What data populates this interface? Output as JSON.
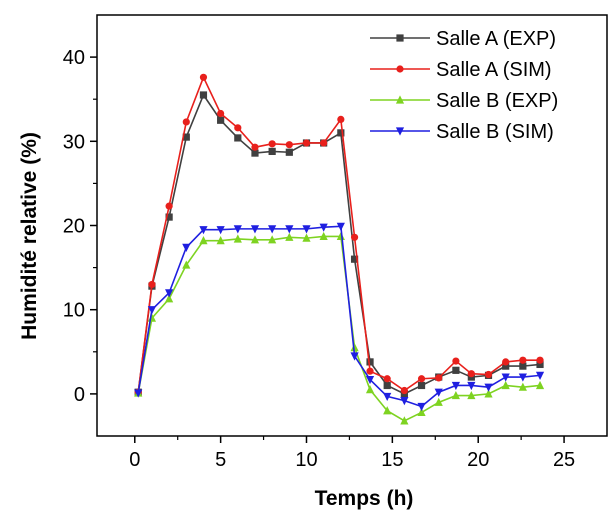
{
  "chart_data": {
    "type": "line",
    "title": "",
    "xlabel": "Temps (h)",
    "ylabel": "Humidité relative  (%)",
    "xlim": [
      -2.2,
      27.5
    ],
    "ylim": [
      -5,
      45
    ],
    "xticks": [
      0,
      5,
      10,
      15,
      20,
      25
    ],
    "yticks": [
      0,
      10,
      20,
      30,
      40
    ],
    "grid": false,
    "legend_position": "top-right",
    "x": [
      0.2,
      1,
      2,
      3,
      4,
      5,
      6,
      7,
      8,
      9,
      10,
      11,
      12,
      12.8,
      13.7,
      14.7,
      15.7,
      16.7,
      17.7,
      18.7,
      19.6,
      20.6,
      21.6,
      22.6,
      23.6
    ],
    "series": [
      {
        "name": "Salle A (EXP)",
        "color": "#404040",
        "marker": "square",
        "values": [
          0.2,
          12.8,
          21.0,
          30.5,
          35.5,
          32.5,
          30.4,
          28.6,
          28.8,
          28.7,
          29.8,
          29.8,
          31.0,
          16.0,
          3.8,
          1.0,
          0.0,
          1.0,
          2.0,
          2.8,
          2.0,
          2.2,
          3.3,
          3.3,
          3.5
        ]
      },
      {
        "name": "Salle A (SIM)",
        "color": "#e8201c",
        "marker": "circle",
        "values": [
          0.2,
          13.0,
          22.3,
          32.3,
          37.6,
          33.3,
          31.6,
          29.3,
          29.7,
          29.6,
          29.8,
          29.8,
          32.6,
          18.6,
          2.7,
          1.8,
          0.4,
          1.8,
          1.9,
          3.9,
          2.4,
          2.3,
          3.8,
          4.0,
          4.0
        ]
      },
      {
        "name": "Salle B (EXP)",
        "color": "#7ed321",
        "marker": "triangle-up",
        "values": [
          0.1,
          9.0,
          11.3,
          15.3,
          18.2,
          18.2,
          18.4,
          18.3,
          18.3,
          18.6,
          18.5,
          18.7,
          18.7,
          5.5,
          0.5,
          -2.0,
          -3.2,
          -2.2,
          -1.0,
          -0.2,
          -0.2,
          0.0,
          1.0,
          0.8,
          1.0
        ]
      },
      {
        "name": "Salle B (SIM)",
        "color": "#1f1fe0",
        "marker": "triangle-down",
        "values": [
          0.1,
          10.0,
          12.0,
          17.4,
          19.5,
          19.5,
          19.6,
          19.6,
          19.6,
          19.6,
          19.6,
          19.8,
          19.9,
          4.5,
          1.7,
          -0.3,
          -0.8,
          -1.5,
          0.2,
          1.0,
          1.0,
          0.8,
          2.0,
          2.0,
          2.2
        ]
      }
    ]
  }
}
